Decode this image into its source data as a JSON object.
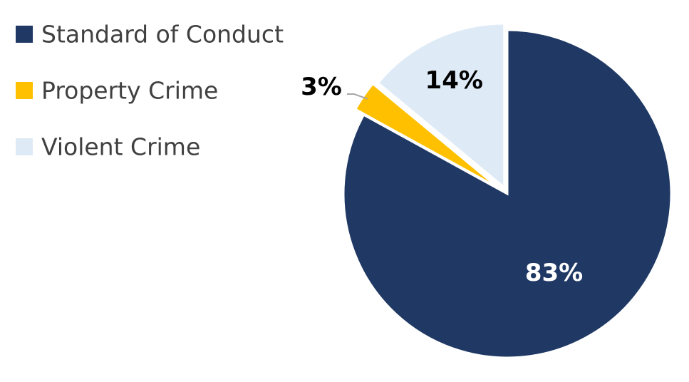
{
  "chart_data": {
    "type": "pie",
    "title": "",
    "legend_position": "top-left",
    "slices": [
      {
        "name": "Standard of Conduct",
        "value": 83,
        "label": "83%",
        "color": "#1f3864",
        "label_color": "#ffffff"
      },
      {
        "name": "Property Crime",
        "value": 3,
        "label": "3%",
        "color": "#ffc000",
        "label_color": "#000000"
      },
      {
        "name": "Violent Crime",
        "value": 14,
        "label": "14%",
        "color": "#deebf7",
        "label_color": "#000000"
      }
    ]
  }
}
